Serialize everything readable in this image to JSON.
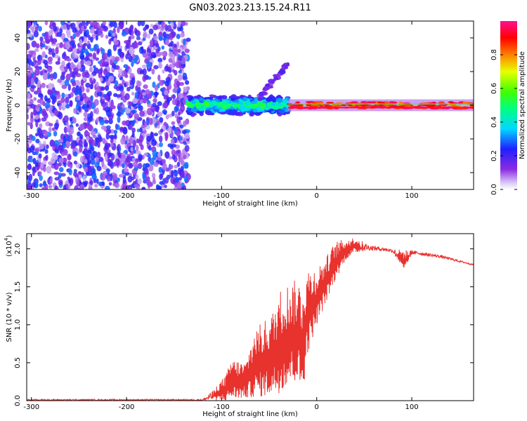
{
  "title": "GN03.2023.213.15.24.R11",
  "chart_data": [
    {
      "type": "heatmap",
      "xlabel": "Height of straight line (km)",
      "ylabel": "Frequency (Hz)",
      "xlim": [
        -305,
        165
      ],
      "ylim": [
        -50,
        50
      ],
      "xticks": [
        -300,
        -200,
        -100,
        0,
        100
      ],
      "yticks": [
        -40,
        -20,
        0,
        20,
        40
      ],
      "colorbar": {
        "label": "Normalized spectral amplitude",
        "range": [
          0.0,
          1.0
        ],
        "ticks": [
          0.0,
          0.2,
          0.4,
          0.6,
          0.8
        ],
        "colormap": "rainbow (purple-blue-cyan-green-yellow-red-magenta)"
      },
      "regions": [
        {
          "x": [
            -305,
            -135
          ],
          "freq": [
            -50,
            50
          ],
          "amplitude": [
            0.1,
            0.3
          ],
          "pattern": "noise"
        },
        {
          "x": [
            -135,
            -30
          ],
          "freq": [
            -6,
            6
          ],
          "amplitude": [
            0.3,
            0.6
          ],
          "pattern": "signal band"
        },
        {
          "x": [
            -60,
            -30
          ],
          "freq": [
            5,
            25
          ],
          "amplitude": [
            0.1,
            0.2
          ],
          "pattern": "rising branch"
        },
        {
          "x": [
            -30,
            165
          ],
          "freq": [
            -2,
            2
          ],
          "amplitude": [
            0.8,
            1.0
          ],
          "pattern": "narrow carrier"
        }
      ]
    },
    {
      "type": "line",
      "xlabel": "Height of straight line (km)",
      "ylabel": "SNR (10 * v/v)",
      "yscale_label": "(x10",
      "yscale_exp": "4",
      "xlim": [
        -305,
        165
      ],
      "ylim": [
        0,
        2.2
      ],
      "xticks": [
        -300,
        -200,
        -100,
        0,
        100
      ],
      "yticks": [
        0.0,
        0.5,
        1.0,
        1.5,
        2.0
      ],
      "color": "#e8322e",
      "envelope": [
        {
          "x": -305,
          "low": 0.0,
          "high": 0.02
        },
        {
          "x": -120,
          "low": 0.0,
          "high": 0.02
        },
        {
          "x": -110,
          "low": 0.0,
          "high": 0.12
        },
        {
          "x": -95,
          "low": 0.0,
          "high": 0.35
        },
        {
          "x": -90,
          "low": 0.02,
          "high": 0.55
        },
        {
          "x": -75,
          "low": 0.03,
          "high": 0.5
        },
        {
          "x": -65,
          "low": 0.05,
          "high": 0.95
        },
        {
          "x": -55,
          "low": 0.05,
          "high": 1.05
        },
        {
          "x": -45,
          "low": 0.08,
          "high": 1.2
        },
        {
          "x": -40,
          "low": 0.1,
          "high": 1.45
        },
        {
          "x": -30,
          "low": 0.2,
          "high": 1.55
        },
        {
          "x": -20,
          "low": 0.25,
          "high": 1.6
        },
        {
          "x": -15,
          "low": 0.05,
          "high": 1.55
        },
        {
          "x": -10,
          "low": 0.6,
          "high": 1.75
        },
        {
          "x": 0,
          "low": 1.0,
          "high": 1.75
        },
        {
          "x": 10,
          "low": 1.3,
          "high": 1.9
        },
        {
          "x": 20,
          "low": 1.6,
          "high": 2.1
        },
        {
          "x": 30,
          "low": 1.85,
          "high": 2.12
        },
        {
          "x": 40,
          "low": 1.95,
          "high": 2.15
        },
        {
          "x": 55,
          "low": 1.98,
          "high": 2.05
        },
        {
          "x": 70,
          "low": 1.97,
          "high": 2.02
        },
        {
          "x": 80,
          "low": 1.95,
          "high": 2.0
        },
        {
          "x": 92,
          "low": 1.7,
          "high": 1.98
        },
        {
          "x": 100,
          "low": 1.93,
          "high": 1.98
        },
        {
          "x": 130,
          "low": 1.88,
          "high": 1.92
        },
        {
          "x": 165,
          "low": 1.78,
          "high": 1.8
        }
      ]
    }
  ]
}
